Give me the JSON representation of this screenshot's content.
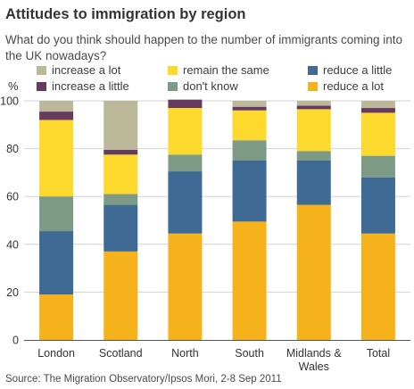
{
  "chart_data": {
    "type": "bar",
    "stacked": true,
    "title": "Attitudes to immigration by region",
    "subtitle": "What do you think should happen to the number of immigrants coming into the UK nowadays?",
    "ylabel": "%",
    "ylim": [
      0,
      100
    ],
    "yticks": [
      0,
      20,
      40,
      60,
      80,
      100
    ],
    "grid": true,
    "categories": [
      "London",
      "Scotland",
      "North",
      "South",
      "Midlands & Wales",
      "Total"
    ],
    "category_lines": [
      [
        "London"
      ],
      [
        "Scotland"
      ],
      [
        "North"
      ],
      [
        "South"
      ],
      [
        "Midlands &",
        "Wales"
      ],
      [
        "Total"
      ]
    ],
    "series": [
      {
        "name": "reduce a lot",
        "color": "#f5b21b",
        "values": [
          19,
          37,
          44.5,
          49.5,
          56.5,
          44.5
        ]
      },
      {
        "name": "reduce a little",
        "color": "#3f6a93",
        "values": [
          26.5,
          19.5,
          26,
          25.5,
          18.5,
          23.5
        ]
      },
      {
        "name": "don't know",
        "color": "#7d9a87",
        "values": [
          14.5,
          4.5,
          7,
          8.5,
          4,
          9
        ]
      },
      {
        "name": "remain the same",
        "color": "#fcd92c",
        "values": [
          32,
          16.5,
          19.5,
          12.5,
          17.5,
          18
        ]
      },
      {
        "name": "increase a little",
        "color": "#673a5f",
        "values": [
          3.5,
          2,
          3.5,
          1.5,
          1.5,
          2
        ]
      },
      {
        "name": "increase a lot",
        "color": "#bbb99a",
        "values": [
          4.5,
          20.5,
          0,
          2.5,
          2,
          3
        ]
      }
    ],
    "legend": {
      "rows": [
        [
          "increase a lot",
          "remain the same",
          "reduce a little"
        ],
        [
          "increase a little",
          "don't know",
          "reduce a lot"
        ]
      ]
    },
    "source": "Source: The Migration Observatory/Ipsos Mori, 2-8 Sep 2011"
  }
}
